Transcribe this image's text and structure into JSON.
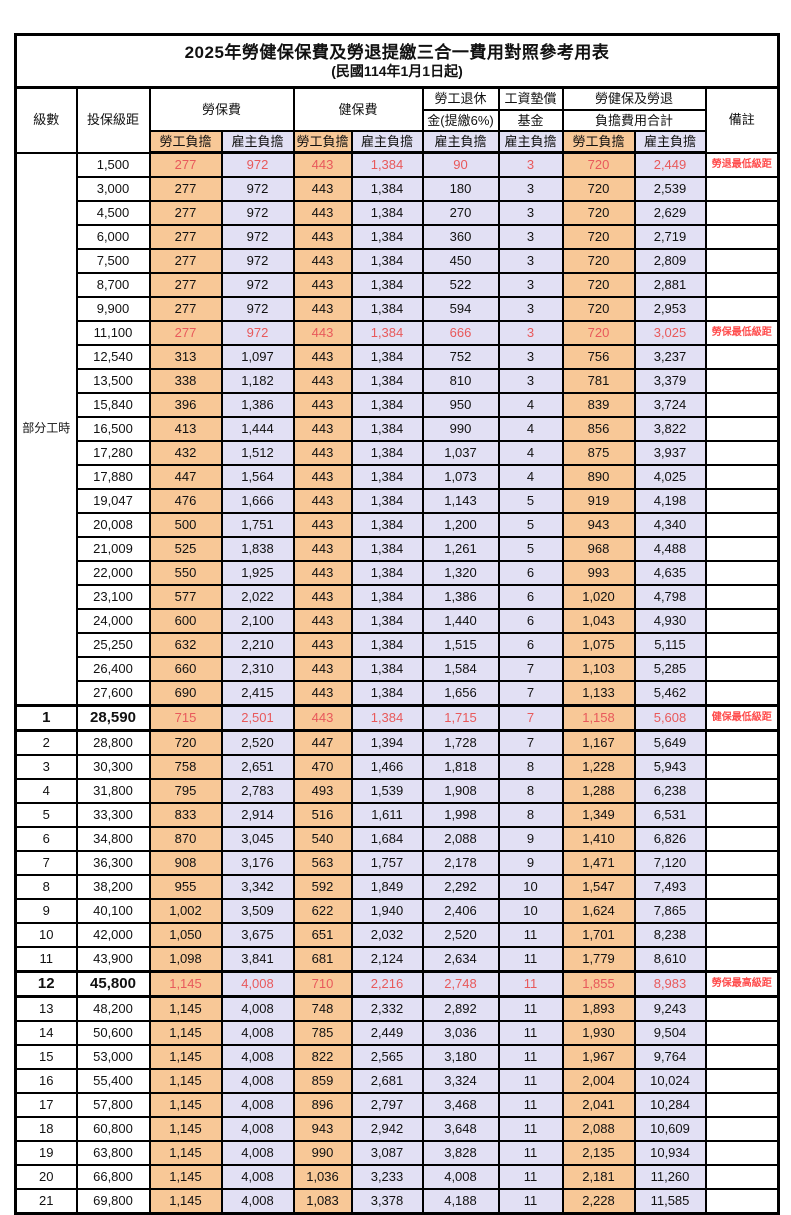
{
  "title": "2025年勞健保保費及勞退提繳三合一費用對照參考用表",
  "subtitle": "(民國114年1月1日起)",
  "header": {
    "level": "級數",
    "bracket": "投保級距",
    "labor_ins": "勞保費",
    "health_ins": "健保費",
    "pension_line1": "勞工退休",
    "pension_line2": "金(提繳6%)",
    "fund_line1": "工資墊償",
    "fund_line2": "基金",
    "total_line1": "勞健保及勞退",
    "total_line2": "負擔費用合計",
    "remark": "備註",
    "employee": "勞工負擔",
    "employer": "雇主負擔"
  },
  "part_time_label": "部分工時",
  "colors": {
    "employee_fill": "#f8c897",
    "employer_fill": "#e2e0f4",
    "highlight_number_red": "#e8595b",
    "remark_red": "#ff4d4d",
    "border_black": "#000000"
  },
  "rows": [
    {
      "level": "",
      "bracket": "1,500",
      "labor_emp": "277",
      "labor_er": "972",
      "health_emp": "443",
      "health_er": "1,384",
      "pension": "90",
      "fund": "3",
      "total_emp": "720",
      "total_er": "2,449",
      "remark": "勞退最低級距",
      "red": true,
      "bold": false,
      "thick": false
    },
    {
      "level": "",
      "bracket": "3,000",
      "labor_emp": "277",
      "labor_er": "972",
      "health_emp": "443",
      "health_er": "1,384",
      "pension": "180",
      "fund": "3",
      "total_emp": "720",
      "total_er": "2,539",
      "remark": "",
      "red": false,
      "bold": false,
      "thick": false
    },
    {
      "level": "",
      "bracket": "4,500",
      "labor_emp": "277",
      "labor_er": "972",
      "health_emp": "443",
      "health_er": "1,384",
      "pension": "270",
      "fund": "3",
      "total_emp": "720",
      "total_er": "2,629",
      "remark": "",
      "red": false,
      "bold": false,
      "thick": false
    },
    {
      "level": "",
      "bracket": "6,000",
      "labor_emp": "277",
      "labor_er": "972",
      "health_emp": "443",
      "health_er": "1,384",
      "pension": "360",
      "fund": "3",
      "total_emp": "720",
      "total_er": "2,719",
      "remark": "",
      "red": false,
      "bold": false,
      "thick": false
    },
    {
      "level": "",
      "bracket": "7,500",
      "labor_emp": "277",
      "labor_er": "972",
      "health_emp": "443",
      "health_er": "1,384",
      "pension": "450",
      "fund": "3",
      "total_emp": "720",
      "total_er": "2,809",
      "remark": "",
      "red": false,
      "bold": false,
      "thick": false
    },
    {
      "level": "",
      "bracket": "8,700",
      "labor_emp": "277",
      "labor_er": "972",
      "health_emp": "443",
      "health_er": "1,384",
      "pension": "522",
      "fund": "3",
      "total_emp": "720",
      "total_er": "2,881",
      "remark": "",
      "red": false,
      "bold": false,
      "thick": false
    },
    {
      "level": "",
      "bracket": "9,900",
      "labor_emp": "277",
      "labor_er": "972",
      "health_emp": "443",
      "health_er": "1,384",
      "pension": "594",
      "fund": "3",
      "total_emp": "720",
      "total_er": "2,953",
      "remark": "",
      "red": false,
      "bold": false,
      "thick": false
    },
    {
      "level": "",
      "bracket": "11,100",
      "labor_emp": "277",
      "labor_er": "972",
      "health_emp": "443",
      "health_er": "1,384",
      "pension": "666",
      "fund": "3",
      "total_emp": "720",
      "total_er": "3,025",
      "remark": "勞保最低級距",
      "red": true,
      "bold": false,
      "thick": false
    },
    {
      "level": "",
      "bracket": "12,540",
      "labor_emp": "313",
      "labor_er": "1,097",
      "health_emp": "443",
      "health_er": "1,384",
      "pension": "752",
      "fund": "3",
      "total_emp": "756",
      "total_er": "3,237",
      "remark": "",
      "red": false,
      "bold": false,
      "thick": false
    },
    {
      "level": "",
      "bracket": "13,500",
      "labor_emp": "338",
      "labor_er": "1,182",
      "health_emp": "443",
      "health_er": "1,384",
      "pension": "810",
      "fund": "3",
      "total_emp": "781",
      "total_er": "3,379",
      "remark": "",
      "red": false,
      "bold": false,
      "thick": false
    },
    {
      "level": "",
      "bracket": "15,840",
      "labor_emp": "396",
      "labor_er": "1,386",
      "health_emp": "443",
      "health_er": "1,384",
      "pension": "950",
      "fund": "4",
      "total_emp": "839",
      "total_er": "3,724",
      "remark": "",
      "red": false,
      "bold": false,
      "thick": false
    },
    {
      "level": "",
      "bracket": "16,500",
      "labor_emp": "413",
      "labor_er": "1,444",
      "health_emp": "443",
      "health_er": "1,384",
      "pension": "990",
      "fund": "4",
      "total_emp": "856",
      "total_er": "3,822",
      "remark": "",
      "red": false,
      "bold": false,
      "thick": false
    },
    {
      "level": "",
      "bracket": "17,280",
      "labor_emp": "432",
      "labor_er": "1,512",
      "health_emp": "443",
      "health_er": "1,384",
      "pension": "1,037",
      "fund": "4",
      "total_emp": "875",
      "total_er": "3,937",
      "remark": "",
      "red": false,
      "bold": false,
      "thick": false
    },
    {
      "level": "",
      "bracket": "17,880",
      "labor_emp": "447",
      "labor_er": "1,564",
      "health_emp": "443",
      "health_er": "1,384",
      "pension": "1,073",
      "fund": "4",
      "total_emp": "890",
      "total_er": "4,025",
      "remark": "",
      "red": false,
      "bold": false,
      "thick": false
    },
    {
      "level": "",
      "bracket": "19,047",
      "labor_emp": "476",
      "labor_er": "1,666",
      "health_emp": "443",
      "health_er": "1,384",
      "pension": "1,143",
      "fund": "5",
      "total_emp": "919",
      "total_er": "4,198",
      "remark": "",
      "red": false,
      "bold": false,
      "thick": false
    },
    {
      "level": "",
      "bracket": "20,008",
      "labor_emp": "500",
      "labor_er": "1,751",
      "health_emp": "443",
      "health_er": "1,384",
      "pension": "1,200",
      "fund": "5",
      "total_emp": "943",
      "total_er": "4,340",
      "remark": "",
      "red": false,
      "bold": false,
      "thick": false
    },
    {
      "level": "",
      "bracket": "21,009",
      "labor_emp": "525",
      "labor_er": "1,838",
      "health_emp": "443",
      "health_er": "1,384",
      "pension": "1,261",
      "fund": "5",
      "total_emp": "968",
      "total_er": "4,488",
      "remark": "",
      "red": false,
      "bold": false,
      "thick": false
    },
    {
      "level": "",
      "bracket": "22,000",
      "labor_emp": "550",
      "labor_er": "1,925",
      "health_emp": "443",
      "health_er": "1,384",
      "pension": "1,320",
      "fund": "6",
      "total_emp": "993",
      "total_er": "4,635",
      "remark": "",
      "red": false,
      "bold": false,
      "thick": false
    },
    {
      "level": "",
      "bracket": "23,100",
      "labor_emp": "577",
      "labor_er": "2,022",
      "health_emp": "443",
      "health_er": "1,384",
      "pension": "1,386",
      "fund": "6",
      "total_emp": "1,020",
      "total_er": "4,798",
      "remark": "",
      "red": false,
      "bold": false,
      "thick": false
    },
    {
      "level": "",
      "bracket": "24,000",
      "labor_emp": "600",
      "labor_er": "2,100",
      "health_emp": "443",
      "health_er": "1,384",
      "pension": "1,440",
      "fund": "6",
      "total_emp": "1,043",
      "total_er": "4,930",
      "remark": "",
      "red": false,
      "bold": false,
      "thick": false
    },
    {
      "level": "",
      "bracket": "25,250",
      "labor_emp": "632",
      "labor_er": "2,210",
      "health_emp": "443",
      "health_er": "1,384",
      "pension": "1,515",
      "fund": "6",
      "total_emp": "1,075",
      "total_er": "5,115",
      "remark": "",
      "red": false,
      "bold": false,
      "thick": false
    },
    {
      "level": "",
      "bracket": "26,400",
      "labor_emp": "660",
      "labor_er": "2,310",
      "health_emp": "443",
      "health_er": "1,384",
      "pension": "1,584",
      "fund": "7",
      "total_emp": "1,103",
      "total_er": "5,285",
      "remark": "",
      "red": false,
      "bold": false,
      "thick": false
    },
    {
      "level": "",
      "bracket": "27,600",
      "labor_emp": "690",
      "labor_er": "2,415",
      "health_emp": "443",
      "health_er": "1,384",
      "pension": "1,656",
      "fund": "7",
      "total_emp": "1,133",
      "total_er": "5,462",
      "remark": "",
      "red": false,
      "bold": false,
      "thick": false
    },
    {
      "level": "1",
      "bracket": "28,590",
      "labor_emp": "715",
      "labor_er": "2,501",
      "health_emp": "443",
      "health_er": "1,384",
      "pension": "1,715",
      "fund": "7",
      "total_emp": "1,158",
      "total_er": "5,608",
      "remark": "健保最低級距",
      "red": true,
      "bold": true,
      "thick": true
    },
    {
      "level": "2",
      "bracket": "28,800",
      "labor_emp": "720",
      "labor_er": "2,520",
      "health_emp": "447",
      "health_er": "1,394",
      "pension": "1,728",
      "fund": "7",
      "total_emp": "1,167",
      "total_er": "5,649",
      "remark": "",
      "red": false,
      "bold": false,
      "thick": false
    },
    {
      "level": "3",
      "bracket": "30,300",
      "labor_emp": "758",
      "labor_er": "2,651",
      "health_emp": "470",
      "health_er": "1,466",
      "pension": "1,818",
      "fund": "8",
      "total_emp": "1,228",
      "total_er": "5,943",
      "remark": "",
      "red": false,
      "bold": false,
      "thick": false
    },
    {
      "level": "4",
      "bracket": "31,800",
      "labor_emp": "795",
      "labor_er": "2,783",
      "health_emp": "493",
      "health_er": "1,539",
      "pension": "1,908",
      "fund": "8",
      "total_emp": "1,288",
      "total_er": "6,238",
      "remark": "",
      "red": false,
      "bold": false,
      "thick": false
    },
    {
      "level": "5",
      "bracket": "33,300",
      "labor_emp": "833",
      "labor_er": "2,914",
      "health_emp": "516",
      "health_er": "1,611",
      "pension": "1,998",
      "fund": "8",
      "total_emp": "1,349",
      "total_er": "6,531",
      "remark": "",
      "red": false,
      "bold": false,
      "thick": false
    },
    {
      "level": "6",
      "bracket": "34,800",
      "labor_emp": "870",
      "labor_er": "3,045",
      "health_emp": "540",
      "health_er": "1,684",
      "pension": "2,088",
      "fund": "9",
      "total_emp": "1,410",
      "total_er": "6,826",
      "remark": "",
      "red": false,
      "bold": false,
      "thick": false
    },
    {
      "level": "7",
      "bracket": "36,300",
      "labor_emp": "908",
      "labor_er": "3,176",
      "health_emp": "563",
      "health_er": "1,757",
      "pension": "2,178",
      "fund": "9",
      "total_emp": "1,471",
      "total_er": "7,120",
      "remark": "",
      "red": false,
      "bold": false,
      "thick": false
    },
    {
      "level": "8",
      "bracket": "38,200",
      "labor_emp": "955",
      "labor_er": "3,342",
      "health_emp": "592",
      "health_er": "1,849",
      "pension": "2,292",
      "fund": "10",
      "total_emp": "1,547",
      "total_er": "7,493",
      "remark": "",
      "red": false,
      "bold": false,
      "thick": false
    },
    {
      "level": "9",
      "bracket": "40,100",
      "labor_emp": "1,002",
      "labor_er": "3,509",
      "health_emp": "622",
      "health_er": "1,940",
      "pension": "2,406",
      "fund": "10",
      "total_emp": "1,624",
      "total_er": "7,865",
      "remark": "",
      "red": false,
      "bold": false,
      "thick": false
    },
    {
      "level": "10",
      "bracket": "42,000",
      "labor_emp": "1,050",
      "labor_er": "3,675",
      "health_emp": "651",
      "health_er": "2,032",
      "pension": "2,520",
      "fund": "11",
      "total_emp": "1,701",
      "total_er": "8,238",
      "remark": "",
      "red": false,
      "bold": false,
      "thick": false
    },
    {
      "level": "11",
      "bracket": "43,900",
      "labor_emp": "1,098",
      "labor_er": "3,841",
      "health_emp": "681",
      "health_er": "2,124",
      "pension": "2,634",
      "fund": "11",
      "total_emp": "1,779",
      "total_er": "8,610",
      "remark": "",
      "red": false,
      "bold": false,
      "thick": false
    },
    {
      "level": "12",
      "bracket": "45,800",
      "labor_emp": "1,145",
      "labor_er": "4,008",
      "health_emp": "710",
      "health_er": "2,216",
      "pension": "2,748",
      "fund": "11",
      "total_emp": "1,855",
      "total_er": "8,983",
      "remark": "勞保最高級距",
      "red": true,
      "bold": true,
      "thick": true
    },
    {
      "level": "13",
      "bracket": "48,200",
      "labor_emp": "1,145",
      "labor_er": "4,008",
      "health_emp": "748",
      "health_er": "2,332",
      "pension": "2,892",
      "fund": "11",
      "total_emp": "1,893",
      "total_er": "9,243",
      "remark": "",
      "red": false,
      "bold": false,
      "thick": false
    },
    {
      "level": "14",
      "bracket": "50,600",
      "labor_emp": "1,145",
      "labor_er": "4,008",
      "health_emp": "785",
      "health_er": "2,449",
      "pension": "3,036",
      "fund": "11",
      "total_emp": "1,930",
      "total_er": "9,504",
      "remark": "",
      "red": false,
      "bold": false,
      "thick": false
    },
    {
      "level": "15",
      "bracket": "53,000",
      "labor_emp": "1,145",
      "labor_er": "4,008",
      "health_emp": "822",
      "health_er": "2,565",
      "pension": "3,180",
      "fund": "11",
      "total_emp": "1,967",
      "total_er": "9,764",
      "remark": "",
      "red": false,
      "bold": false,
      "thick": false
    },
    {
      "level": "16",
      "bracket": "55,400",
      "labor_emp": "1,145",
      "labor_er": "4,008",
      "health_emp": "859",
      "health_er": "2,681",
      "pension": "3,324",
      "fund": "11",
      "total_emp": "2,004",
      "total_er": "10,024",
      "remark": "",
      "red": false,
      "bold": false,
      "thick": false
    },
    {
      "level": "17",
      "bracket": "57,800",
      "labor_emp": "1,145",
      "labor_er": "4,008",
      "health_emp": "896",
      "health_er": "2,797",
      "pension": "3,468",
      "fund": "11",
      "total_emp": "2,041",
      "total_er": "10,284",
      "remark": "",
      "red": false,
      "bold": false,
      "thick": false
    },
    {
      "level": "18",
      "bracket": "60,800",
      "labor_emp": "1,145",
      "labor_er": "4,008",
      "health_emp": "943",
      "health_er": "2,942",
      "pension": "3,648",
      "fund": "11",
      "total_emp": "2,088",
      "total_er": "10,609",
      "remark": "",
      "red": false,
      "bold": false,
      "thick": false
    },
    {
      "level": "19",
      "bracket": "63,800",
      "labor_emp": "1,145",
      "labor_er": "4,008",
      "health_emp": "990",
      "health_er": "3,087",
      "pension": "3,828",
      "fund": "11",
      "total_emp": "2,135",
      "total_er": "10,934",
      "remark": "",
      "red": false,
      "bold": false,
      "thick": false
    },
    {
      "level": "20",
      "bracket": "66,800",
      "labor_emp": "1,145",
      "labor_er": "4,008",
      "health_emp": "1,036",
      "health_er": "3,233",
      "pension": "4,008",
      "fund": "11",
      "total_emp": "2,181",
      "total_er": "11,260",
      "remark": "",
      "red": false,
      "bold": false,
      "thick": false
    },
    {
      "level": "21",
      "bracket": "69,800",
      "labor_emp": "1,145",
      "labor_er": "4,008",
      "health_emp": "1,083",
      "health_er": "3,378",
      "pension": "4,188",
      "fund": "11",
      "total_emp": "2,228",
      "total_er": "11,585",
      "remark": "",
      "red": false,
      "bold": false,
      "thick": false
    }
  ]
}
